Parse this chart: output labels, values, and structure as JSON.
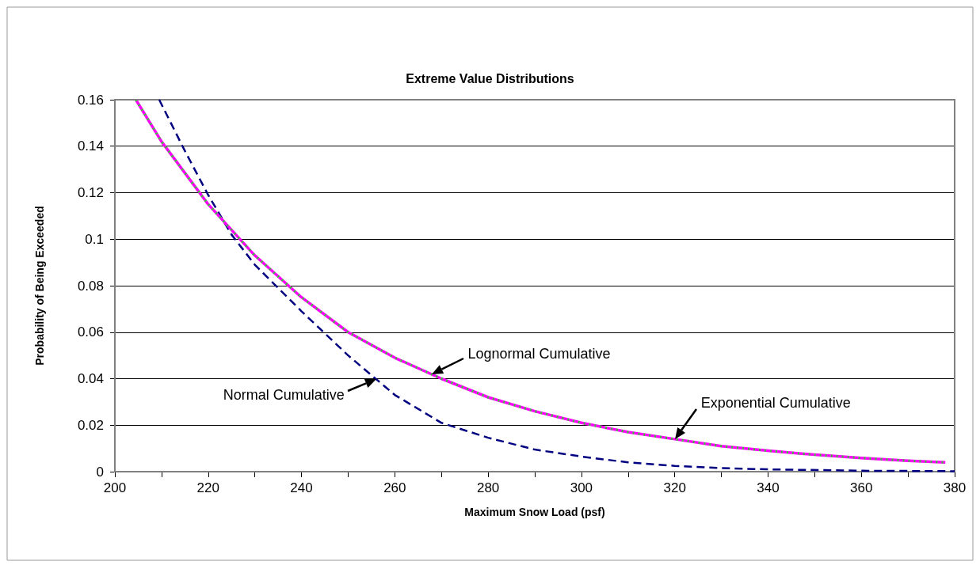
{
  "chart_data": {
    "type": "line",
    "title": "Extreme Value Distributions",
    "xlabel": "Maximum Snow Load (psf)",
    "ylabel": "Probability of Being Exceeded",
    "xlim": [
      200,
      380
    ],
    "xticks": [
      200,
      {
        "value": 210,
        "label": null
      },
      220,
      {
        "value": 230,
        "label": null
      },
      240,
      {
        "value": 250,
        "label": null
      },
      260,
      {
        "value": 270,
        "label": null
      },
      280,
      {
        "value": 290,
        "label": null
      },
      300,
      {
        "value": 310,
        "label": null
      },
      320,
      {
        "value": 330,
        "label": null
      },
      340,
      {
        "value": 350,
        "label": null
      },
      360,
      {
        "value": 370,
        "label": null
      },
      380
    ],
    "ylim": [
      0,
      0.16
    ],
    "yticks": [
      0,
      0.02,
      0.04,
      0.06,
      0.08,
      0.1,
      0.12,
      0.14,
      0.16
    ],
    "grid": "y",
    "marker": "none",
    "series": [
      {
        "color": "#000080",
        "line_style": "dashed",
        "x": [
          209.5,
          215,
          220,
          225,
          230,
          240,
          250,
          260,
          270,
          280,
          290,
          300,
          310,
          320,
          330,
          340,
          360,
          380
        ],
        "values": [
          0.16,
          0.138,
          0.119,
          0.102,
          0.089,
          0.069,
          0.05,
          0.033,
          0.021,
          0.0146,
          0.0095,
          0.0065,
          0.004,
          0.0025,
          0.0015,
          0.001,
          0.0004,
          0.0002
        ]
      },
      {
        "color": "#ff00ff",
        "line_style": "solid",
        "x": [
          204.5,
          210,
          220,
          230,
          240,
          250,
          260,
          270,
          280,
          290,
          300,
          310,
          320,
          330,
          340,
          350,
          360,
          370,
          378
        ],
        "values": [
          0.16,
          0.142,
          0.115,
          0.093,
          0.075,
          0.06,
          0.049,
          0.04,
          0.032,
          0.026,
          0.021,
          0.017,
          0.014,
          0.011,
          0.009,
          0.0073,
          0.0059,
          0.0047,
          0.004
        ]
      },
      {
        "color": "#33cc33",
        "line_style": "dotted",
        "x": [
          204.5,
          210,
          220,
          230,
          240,
          250,
          260,
          270,
          280,
          290,
          300,
          310,
          320,
          330,
          340,
          350,
          360,
          370,
          378
        ],
        "values": [
          0.16,
          0.142,
          0.115,
          0.093,
          0.075,
          0.06,
          0.049,
          0.04,
          0.032,
          0.026,
          0.021,
          0.017,
          0.014,
          0.011,
          0.009,
          0.0073,
          0.0059,
          0.0047,
          0.004
        ]
      }
    ],
    "annotations": [
      {
        "text": "Lognormal Cumulative",
        "x": 268,
        "y": 0.042
      },
      {
        "text": "Normal Cumulative",
        "x": 256,
        "y": 0.0398
      },
      {
        "text": "Exponential Cumulative",
        "x": 320,
        "y": 0.014
      }
    ]
  }
}
